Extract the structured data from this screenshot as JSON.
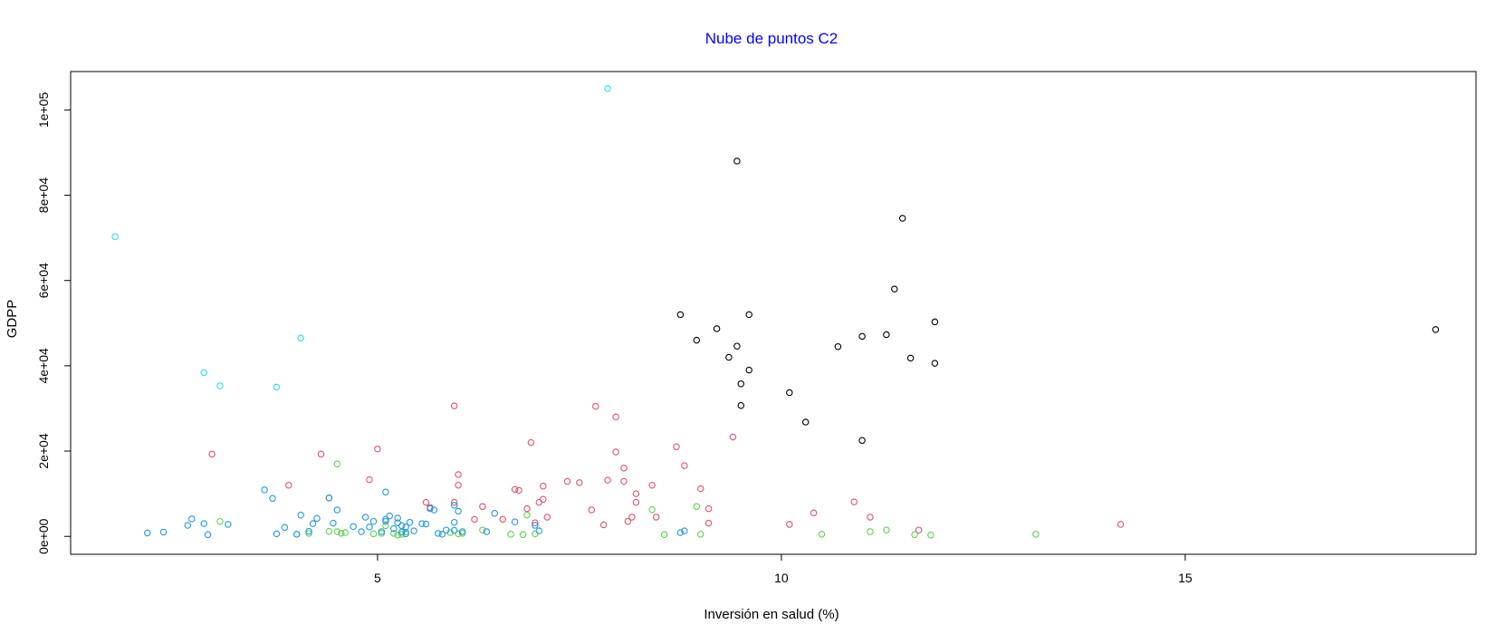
{
  "chart_data": {
    "type": "scatter",
    "title": "Nube de puntos C2",
    "title_color": "#0000ff",
    "xlabel": "Inversión en salud (%)",
    "ylabel": "GDPP",
    "xlim": [
      1.2,
      18.6
    ],
    "ylim": [
      -4200,
      109000
    ],
    "x_ticks": [
      5,
      10,
      15
    ],
    "x_tick_labels": [
      "5",
      "10",
      "15"
    ],
    "y_ticks": [
      0,
      20000,
      40000,
      60000,
      80000,
      100000
    ],
    "y_tick_labels": [
      "0e+00",
      "2e+04",
      "4e+04",
      "6e+04",
      "8e+04",
      "1e+05"
    ],
    "grid": false,
    "legend": "none",
    "series": [
      {
        "color": "#000000",
        "points": [
          [
            9.45,
            88000
          ],
          [
            11.5,
            74600
          ],
          [
            11.4,
            58000
          ],
          [
            8.75,
            52000
          ],
          [
            9.6,
            52000
          ],
          [
            11.9,
            50300
          ],
          [
            9.2,
            48700
          ],
          [
            18.1,
            48500
          ],
          [
            8.95,
            46000
          ],
          [
            11.3,
            47300
          ],
          [
            11.0,
            46900
          ],
          [
            9.45,
            44600
          ],
          [
            10.7,
            44500
          ],
          [
            9.35,
            42000
          ],
          [
            11.6,
            41800
          ],
          [
            11.9,
            40600
          ],
          [
            9.6,
            39000
          ],
          [
            9.5,
            35800
          ],
          [
            10.1,
            33700
          ],
          [
            9.5,
            30700
          ],
          [
            10.3,
            26800
          ],
          [
            11.0,
            22500
          ]
        ]
      },
      {
        "color": "#df536b",
        "points": [
          [
            2.95,
            19300
          ],
          [
            3.9,
            12000
          ],
          [
            4.3,
            19300
          ],
          [
            4.4,
            9000
          ],
          [
            4.9,
            13300
          ],
          [
            5.0,
            20500
          ],
          [
            5.6,
            8000
          ],
          [
            5.65,
            6800
          ],
          [
            5.95,
            30600
          ],
          [
            6.0,
            14500
          ],
          [
            6.0,
            12000
          ],
          [
            5.95,
            8000
          ],
          [
            6.2,
            4000
          ],
          [
            6.3,
            7000
          ],
          [
            6.55,
            4000
          ],
          [
            6.7,
            11000
          ],
          [
            6.75,
            10800
          ],
          [
            6.85,
            6500
          ],
          [
            6.9,
            22000
          ],
          [
            6.95,
            3200
          ],
          [
            7.0,
            8000
          ],
          [
            7.05,
            8700
          ],
          [
            7.05,
            11800
          ],
          [
            7.1,
            4500
          ],
          [
            7.35,
            12900
          ],
          [
            7.5,
            12600
          ],
          [
            7.65,
            6200
          ],
          [
            7.7,
            30500
          ],
          [
            7.8,
            2700
          ],
          [
            7.85,
            13200
          ],
          [
            7.95,
            19800
          ],
          [
            7.95,
            28000
          ],
          [
            8.05,
            16000
          ],
          [
            8.05,
            12900
          ],
          [
            8.1,
            3500
          ],
          [
            8.15,
            4500
          ],
          [
            8.2,
            10000
          ],
          [
            8.2,
            8000
          ],
          [
            8.4,
            12000
          ],
          [
            8.45,
            4500
          ],
          [
            8.7,
            21000
          ],
          [
            8.8,
            16600
          ],
          [
            9.0,
            11200
          ],
          [
            9.1,
            6500
          ],
          [
            9.1,
            3100
          ],
          [
            9.4,
            23300
          ],
          [
            10.1,
            2800
          ],
          [
            10.4,
            5500
          ],
          [
            10.9,
            8100
          ],
          [
            11.1,
            4500
          ],
          [
            11.7,
            1500
          ],
          [
            14.2,
            2800
          ]
        ]
      },
      {
        "color": "#61d04f",
        "points": [
          [
            3.05,
            3500
          ],
          [
            4.0,
            500
          ],
          [
            4.15,
            700
          ],
          [
            4.4,
            1200
          ],
          [
            4.5,
            1100
          ],
          [
            4.5,
            17000
          ],
          [
            4.55,
            700
          ],
          [
            4.6,
            900
          ],
          [
            4.95,
            600
          ],
          [
            5.05,
            700
          ],
          [
            5.1,
            2500
          ],
          [
            5.2,
            700
          ],
          [
            5.25,
            300
          ],
          [
            5.3,
            500
          ],
          [
            5.35,
            1000
          ],
          [
            5.9,
            900
          ],
          [
            6.0,
            600
          ],
          [
            6.05,
            700
          ],
          [
            6.3,
            1500
          ],
          [
            6.65,
            500
          ],
          [
            6.8,
            400
          ],
          [
            6.85,
            5000
          ],
          [
            6.95,
            600
          ],
          [
            8.4,
            6300
          ],
          [
            8.55,
            400
          ],
          [
            8.95,
            7000
          ],
          [
            9.0,
            500
          ],
          [
            10.5,
            500
          ],
          [
            11.1,
            1100
          ],
          [
            11.3,
            1500
          ],
          [
            11.65,
            400
          ],
          [
            11.85,
            300
          ],
          [
            13.15,
            500
          ]
        ]
      },
      {
        "color": "#2297e6",
        "points": [
          [
            2.15,
            800
          ],
          [
            2.35,
            1000
          ],
          [
            2.65,
            2600
          ],
          [
            2.7,
            4100
          ],
          [
            2.85,
            3000
          ],
          [
            2.9,
            400
          ],
          [
            3.15,
            2800
          ],
          [
            3.6,
            10900
          ],
          [
            3.7,
            8900
          ],
          [
            3.75,
            600
          ],
          [
            3.85,
            2100
          ],
          [
            4.0,
            500
          ],
          [
            4.05,
            5000
          ],
          [
            4.15,
            1200
          ],
          [
            4.2,
            3000
          ],
          [
            4.25,
            4200
          ],
          [
            4.4,
            9000
          ],
          [
            4.45,
            3100
          ],
          [
            4.5,
            6200
          ],
          [
            4.7,
            2300
          ],
          [
            4.8,
            1100
          ],
          [
            4.85,
            4500
          ],
          [
            4.9,
            2200
          ],
          [
            4.95,
            3500
          ],
          [
            5.05,
            1100
          ],
          [
            5.1,
            10400
          ],
          [
            5.1,
            4000
          ],
          [
            5.1,
            3500
          ],
          [
            5.15,
            4800
          ],
          [
            5.2,
            1800
          ],
          [
            5.25,
            3200
          ],
          [
            5.25,
            4300
          ],
          [
            5.3,
            1000
          ],
          [
            5.3,
            2500
          ],
          [
            5.35,
            2200
          ],
          [
            5.35,
            600
          ],
          [
            5.4,
            3300
          ],
          [
            5.45,
            1300
          ],
          [
            5.55,
            3000
          ],
          [
            5.6,
            2900
          ],
          [
            5.65,
            6500
          ],
          [
            5.7,
            6200
          ],
          [
            5.75,
            700
          ],
          [
            5.8,
            500
          ],
          [
            5.85,
            1500
          ],
          [
            5.95,
            7300
          ],
          [
            5.95,
            3300
          ],
          [
            5.95,
            1400
          ],
          [
            6.0,
            5900
          ],
          [
            6.05,
            1100
          ],
          [
            6.35,
            1100
          ],
          [
            6.45,
            5400
          ],
          [
            6.7,
            3400
          ],
          [
            6.95,
            2600
          ],
          [
            7.0,
            1300
          ],
          [
            8.75,
            900
          ],
          [
            8.8,
            1300
          ]
        ]
      },
      {
        "color": "#28e2e5",
        "points": [
          [
            1.75,
            70300
          ],
          [
            2.85,
            38400
          ],
          [
            3.05,
            35300
          ],
          [
            3.75,
            35000
          ],
          [
            4.05,
            46500
          ],
          [
            7.85,
            105000
          ]
        ]
      }
    ]
  }
}
